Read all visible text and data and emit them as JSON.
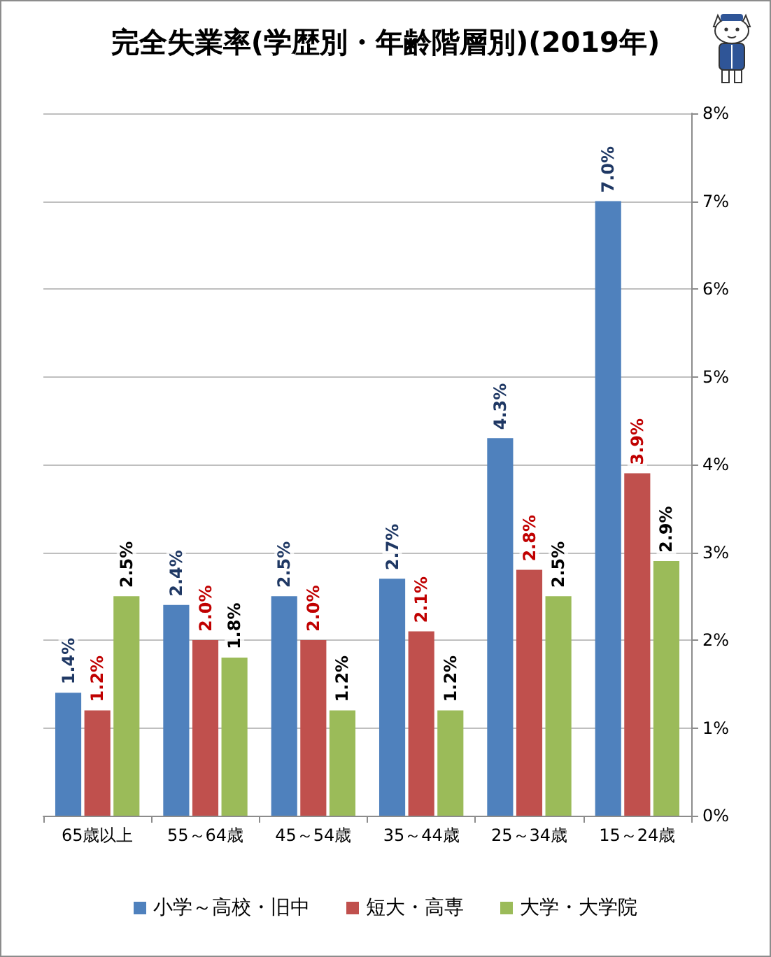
{
  "chart_data": {
    "type": "bar",
    "title": "完全失業率(学歴別・年齢階層別)(2019年)",
    "categories": [
      "65歳以上",
      "55～64歳",
      "45～54歳",
      "35～44歳",
      "25～34歳",
      "15～24歳"
    ],
    "series": [
      {
        "name": "小学～高校・旧中",
        "color": "#4f81bd",
        "values": [
          1.4,
          2.4,
          2.5,
          2.7,
          4.3,
          7.0
        ],
        "value_labels": [
          "1.4%",
          "2.4%",
          "2.5%",
          "2.7%",
          "4.3%",
          "7.0%"
        ]
      },
      {
        "name": "短大・高専",
        "color": "#c0504d",
        "values": [
          1.2,
          2.0,
          2.0,
          2.1,
          2.8,
          3.9
        ],
        "value_labels": [
          "1.2%",
          "2.0%",
          "2.0%",
          "2.1%",
          "2.8%",
          "3.9%"
        ]
      },
      {
        "name": "大学・大学院",
        "color": "#9bbb59",
        "values": [
          2.5,
          1.8,
          1.2,
          1.2,
          2.5,
          2.9
        ],
        "value_labels": [
          "2.5%",
          "1.8%",
          "1.2%",
          "1.2%",
          "2.5%",
          "2.9%"
        ]
      }
    ],
    "ylim": [
      0,
      8
    ],
    "yticks": [
      {
        "value": 0,
        "label": "0%"
      },
      {
        "value": 1,
        "label": "1%"
      },
      {
        "value": 2,
        "label": "2%"
      },
      {
        "value": 3,
        "label": "3%"
      },
      {
        "value": 4,
        "label": "4%"
      },
      {
        "value": 5,
        "label": "5%"
      },
      {
        "value": 6,
        "label": "6%"
      },
      {
        "value": 7,
        "label": "7%"
      },
      {
        "value": 8,
        "label": "8%"
      }
    ],
    "grid": "y",
    "legend": "bottom"
  }
}
